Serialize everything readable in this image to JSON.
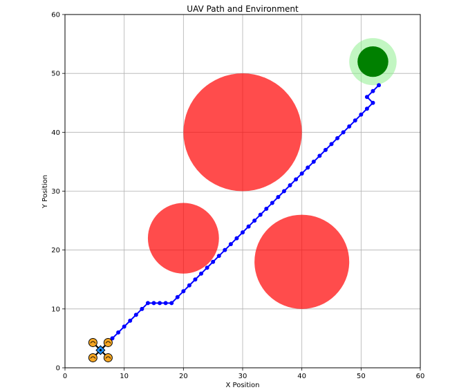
{
  "chart_data": {
    "type": "scatter",
    "title": "UAV Path and Environment",
    "xlabel": "X Position",
    "ylabel": "Y Position",
    "xlim": [
      0,
      60
    ],
    "ylim": [
      0,
      60
    ],
    "xticks": [
      "0",
      "10",
      "20",
      "30",
      "40",
      "50",
      "60"
    ],
    "yticks": [
      "0",
      "10",
      "20",
      "30",
      "40",
      "50",
      "60"
    ],
    "grid": true,
    "colors": {
      "obstacle": "#ff0000",
      "obstacle_opacity": 0.7,
      "path": "#0000ff",
      "goal": "#008000",
      "goal_halo": "#90ee90",
      "uav_body": "#1e90ff",
      "uav_rotor": "#f5a623"
    },
    "obstacles": [
      {
        "x": 30,
        "y": 40,
        "r": 10
      },
      {
        "x": 20,
        "y": 22,
        "r": 6
      },
      {
        "x": 40,
        "y": 18,
        "r": 8
      }
    ],
    "goal": {
      "x": 52,
      "y": 52,
      "r": 2.6,
      "halo_r": 4
    },
    "uav": {
      "x": 6,
      "y": 3,
      "icon": "quadcopter-icon"
    },
    "path": {
      "x": [
        6,
        7,
        8,
        9,
        10,
        11,
        12,
        13,
        14,
        15,
        16,
        17,
        18,
        19,
        20,
        21,
        22,
        23,
        24,
        25,
        26,
        27,
        28,
        29,
        30,
        31,
        32,
        33,
        34,
        35,
        36,
        37,
        38,
        39,
        40,
        41,
        42,
        43,
        44,
        45,
        46,
        47,
        48,
        49,
        50,
        51,
        52,
        51,
        52,
        53
      ],
      "y": [
        3,
        4,
        5,
        6,
        7,
        8,
        9,
        10,
        11,
        11,
        11,
        11,
        11,
        12,
        13,
        14,
        15,
        16,
        17,
        18,
        19,
        20,
        21,
        22,
        23,
        24,
        25,
        26,
        27,
        28,
        29,
        30,
        31,
        32,
        33,
        34,
        35,
        36,
        37,
        38,
        39,
        40,
        41,
        42,
        43,
        44,
        45,
        46,
        47,
        48
      ]
    }
  }
}
